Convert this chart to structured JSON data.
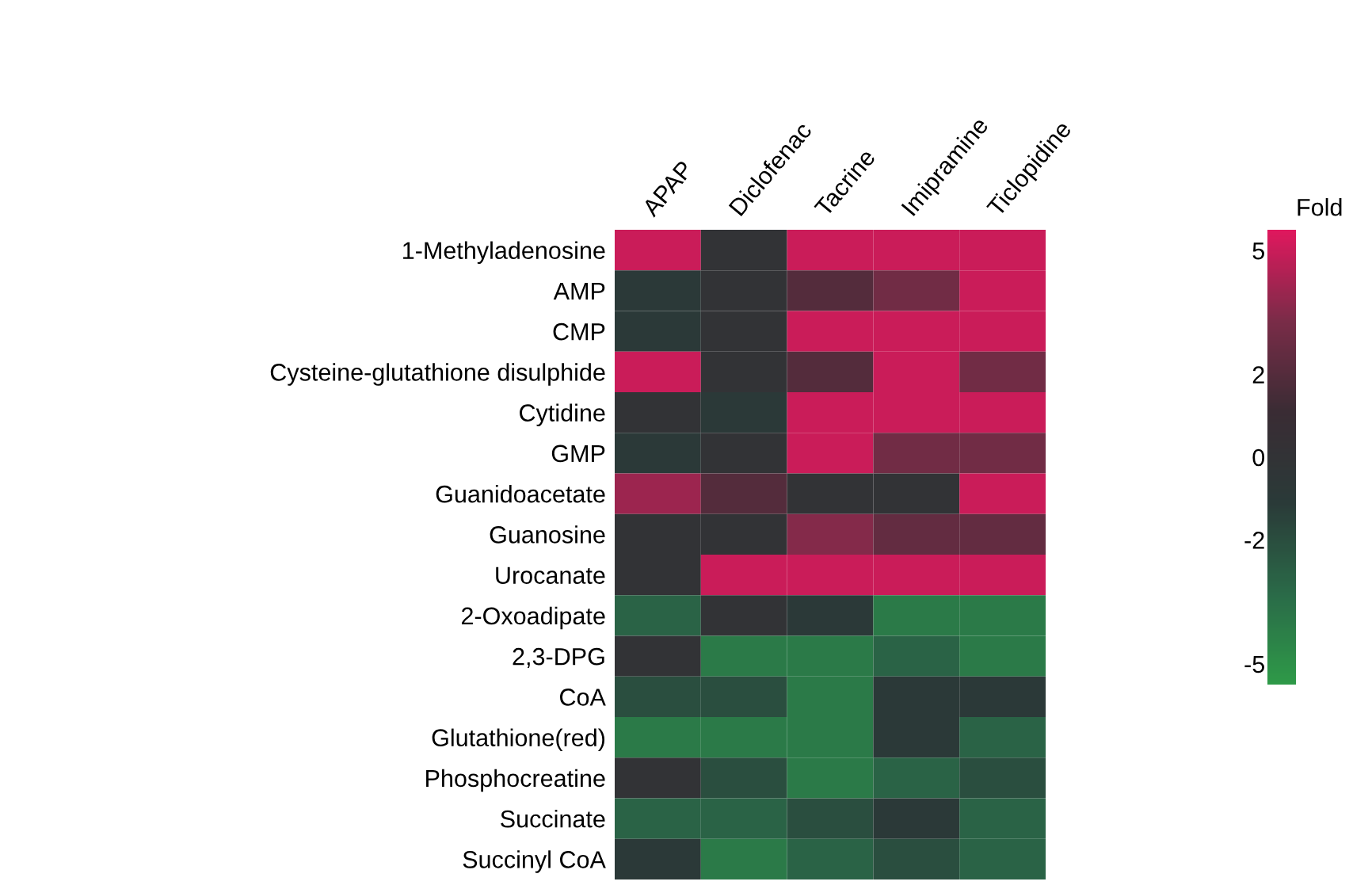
{
  "chart_data": {
    "type": "heatmap",
    "categories": [
      "APAP",
      "Diclofenac",
      "Tacrine",
      "Imipramine",
      "Ticlopidine"
    ],
    "y_categories": [
      "1-Methyladenosine",
      "AMP",
      "CMP",
      "Cysteine-glutathione disulphide",
      "Cytidine",
      "GMP",
      "Guanidoacetate",
      "Guanosine",
      "Urocanate",
      "2-Oxoadipate",
      "2,3-DPG",
      "CoA",
      "Glutathione(red)",
      "Phosphocreatine",
      "Succinate",
      "Succinyl CoA"
    ],
    "cells": [
      [
        5,
        0,
        5,
        5,
        5
      ],
      [
        -1,
        0,
        2,
        3,
        5
      ],
      [
        -1,
        0,
        5,
        5,
        5
      ],
      [
        5,
        0,
        2,
        5,
        3
      ],
      [
        0,
        -1,
        5,
        5,
        5
      ],
      [
        -1,
        0,
        5,
        3,
        3
      ],
      [
        4,
        2,
        0,
        0,
        5
      ],
      [
        0,
        0,
        3.5,
        2.5,
        2.5
      ],
      [
        0,
        5,
        5,
        5,
        5
      ],
      [
        -3,
        0,
        -1,
        -4,
        -4
      ],
      [
        0,
        -4,
        -4,
        -3,
        -4
      ],
      [
        -2,
        -2,
        -4,
        -1,
        -1
      ],
      [
        -4,
        -4,
        -4,
        -1,
        -3
      ],
      [
        0,
        -2,
        -4,
        -3,
        -2
      ],
      [
        -3,
        -3,
        -2,
        -1,
        -3
      ],
      [
        -1,
        -4,
        -3,
        -2,
        -3
      ]
    ],
    "clim": [
      -5.5,
      5.5
    ],
    "cticks": [
      -5,
      -2,
      0,
      2,
      5
    ],
    "clabel": "Fold",
    "colors": [
      "#2e9a48",
      "#2a6a48",
      "#2a3a38",
      "#3a2c34",
      "#7a2c48",
      "#e0185e"
    ]
  }
}
